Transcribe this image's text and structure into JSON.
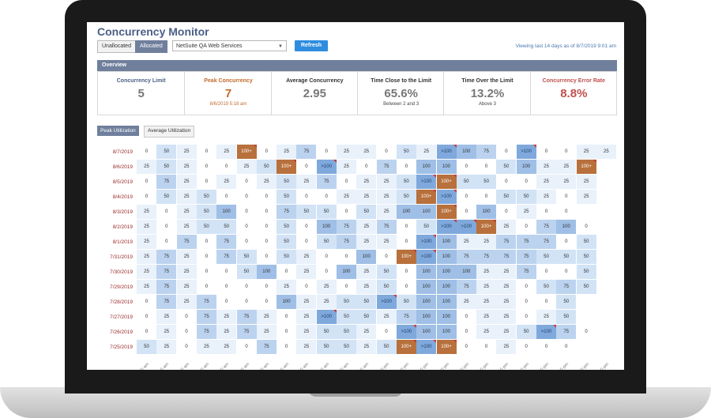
{
  "app": {
    "title": "Concurrency Monitor",
    "toggle_unallocated": "Unallocated",
    "toggle_allocated": "Allocated",
    "account_select": "NetSuite QA Web Services",
    "refresh_label": "Refresh",
    "viewing": "Viewing last 14 days as of 8/7/2019 9:01 am"
  },
  "overview": {
    "header": "Overview",
    "stats": [
      {
        "label": "Concurrency Limit",
        "value": "5",
        "sub": "",
        "label_color": "#4a5f85",
        "value_color": "#777777"
      },
      {
        "label": "Peak Concurrency",
        "value": "7",
        "sub": "8/6/2019 5:18 am",
        "label_color": "#c46a2c",
        "value_color": "#c46a2c"
      },
      {
        "label": "Average Concurrency",
        "value": "2.95",
        "sub": "",
        "label_color": "#333333",
        "value_color": "#777777"
      },
      {
        "label": "Time Close to the Limit",
        "value": "65.6%",
        "sub": "Between 2 and 3",
        "label_color": "#333333",
        "value_color": "#777777"
      },
      {
        "label": "Time Over the Limit",
        "value": "13.2%",
        "sub": "Above 3",
        "label_color": "#333333",
        "value_color": "#777777"
      },
      {
        "label": "Concurrency Error Rate",
        "value": "8.8%",
        "sub": "",
        "label_color": "#c0504d",
        "value_color": "#c0504d"
      }
    ]
  },
  "tabs": {
    "peak": "Peak Utilization",
    "average": "Average Utilization"
  },
  "heatmap": {
    "dates": [
      "8/7/2019",
      "8/6/2019",
      "8/5/2019",
      "8/4/2019",
      "8/3/2019",
      "8/2/2019",
      "8/1/2019",
      "7/31/2019",
      "7/30/2019",
      "7/29/2019",
      "7/28/2019",
      "7/27/2019",
      "7/26/2019",
      "7/25/2019"
    ],
    "hour_labels": [
      "00 am",
      "00 am",
      "00 am",
      "00 am",
      "00 am",
      "00 am",
      "00 am",
      "00 am",
      "00 am",
      "00 am",
      "00 am",
      "00 am",
      "00 pm",
      "00 pm",
      "00 pm",
      "00 pm",
      "00 pm",
      "00 pm",
      "00 pm",
      "00 pm",
      "00 pm",
      "00 pm",
      "00 pm",
      "00 pm"
    ],
    "rows": [
      [
        "0",
        "50",
        "25",
        "0",
        "25",
        "100+",
        "0",
        "25",
        "75",
        "0",
        "25",
        "25",
        "0",
        "50",
        "25",
        ">100",
        "100",
        "75",
        "0",
        ">100",
        "0",
        "0",
        "25",
        "25"
      ],
      [
        "25",
        "50",
        "25",
        "0",
        "0",
        "25",
        "50",
        "100+",
        "0",
        ">100",
        "25",
        "0",
        "75",
        "0",
        "100",
        "100",
        "0",
        "0",
        "50",
        "100",
        "25",
        "25",
        "100+",
        ""
      ],
      [
        "0",
        "75",
        "25",
        "0",
        "25",
        "0",
        "25",
        "50",
        "25",
        "75",
        "0",
        "25",
        "25",
        "50",
        ">100",
        "100+",
        "50",
        "50",
        "0",
        "0",
        "25",
        "25",
        "25",
        ""
      ],
      [
        "0",
        "50",
        "25",
        "50",
        "0",
        "0",
        "0",
        "50",
        "0",
        "0",
        "25",
        "25",
        "25",
        "50",
        "100+",
        ">100",
        "0",
        "0",
        "50",
        "50",
        "25",
        "0",
        "25",
        ""
      ],
      [
        "25",
        "0",
        "25",
        "50",
        "100",
        "0",
        "0",
        "75",
        "50",
        "50",
        "0",
        "50",
        "25",
        "100",
        "100",
        "100+",
        "0",
        "100",
        "0",
        "25",
        "0",
        "0",
        "",
        ""
      ],
      [
        "25",
        "0",
        "25",
        "50",
        "50",
        "0",
        "0",
        "50",
        "0",
        "100",
        "75",
        "25",
        "75",
        "0",
        "50",
        ">100",
        ">100",
        "100+",
        "25",
        "0",
        "75",
        "100",
        "0",
        ""
      ],
      [
        "25",
        "0",
        "75",
        "0",
        "75",
        "0",
        "0",
        "50",
        "0",
        "50",
        "75",
        "25",
        "25",
        "0",
        ">100",
        "100",
        "25",
        "25",
        "75",
        "75",
        "75",
        "0",
        "50",
        ""
      ],
      [
        "25",
        "75",
        "25",
        "0",
        "75",
        "50",
        "0",
        "50",
        "25",
        "0",
        "0",
        "100",
        "0",
        "100+",
        ">100",
        "100",
        "75",
        "75",
        "75",
        "75",
        "50",
        "50",
        "50",
        ""
      ],
      [
        "25",
        "75",
        "25",
        "0",
        "0",
        "50",
        "100",
        "0",
        "25",
        "0",
        "100",
        "25",
        "50",
        "0",
        "100",
        "100",
        "100",
        "25",
        "25",
        "75",
        "0",
        "0",
        "50",
        ""
      ],
      [
        "25",
        "75",
        "25",
        "0",
        "0",
        "0",
        "0",
        "25",
        "0",
        "25",
        "0",
        "25",
        "50",
        "0",
        "100",
        "100",
        "75",
        "25",
        "25",
        "0",
        "50",
        "75",
        "50",
        ""
      ],
      [
        "0",
        "75",
        "25",
        "75",
        "0",
        "0",
        "0",
        "100",
        "25",
        "25",
        "50",
        "50",
        ">100",
        "50",
        "100",
        "100",
        "25",
        "25",
        "25",
        "0",
        "0",
        "50",
        "",
        ""
      ],
      [
        "0",
        "25",
        "0",
        "75",
        "25",
        "75",
        "25",
        "0",
        "25",
        ">100",
        "50",
        "50",
        "25",
        "75",
        "100",
        "100",
        "0",
        "25",
        "25",
        "0",
        "25",
        "50",
        "",
        ""
      ],
      [
        "0",
        "25",
        "0",
        "75",
        "25",
        "75",
        "25",
        "0",
        "25",
        "50",
        "50",
        "25",
        "0",
        ">100",
        "100",
        "100",
        "0",
        "25",
        "25",
        "50",
        ">100",
        "75",
        "0",
        ""
      ],
      [
        "50",
        "25",
        "0",
        "25",
        "25",
        "0",
        "75",
        "0",
        "25",
        "50",
        "50",
        "25",
        "50",
        "100+",
        ">100",
        "100+",
        "0",
        "0",
        "25",
        "0",
        "0",
        "0",
        "",
        ""
      ]
    ]
  },
  "colors": {
    "header_bar": "#6f7f9c",
    "peak_cell": "#b8703c",
    "over_limit_cell": "#7fa9dc",
    "flag": "#c63c3c",
    "date_label": "#9c2a2a"
  }
}
